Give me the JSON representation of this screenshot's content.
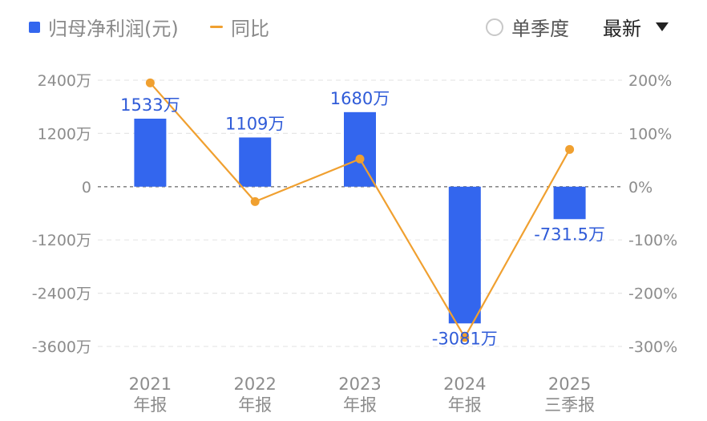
{
  "legend": {
    "bar_series_label": "归母净利润(元)",
    "line_series_label": "同比"
  },
  "controls": {
    "single_quarter_label": "单季度",
    "sort_label": "最新"
  },
  "colors": {
    "bar": "#3366ee",
    "line": "#f0a030",
    "label": "#2f5bd8"
  },
  "chart_data": {
    "type": "bar",
    "categories": [
      [
        "2021",
        "年报"
      ],
      [
        "2022",
        "年报"
      ],
      [
        "2023",
        "年报"
      ],
      [
        "2024",
        "年报"
      ],
      [
        "2025",
        "三季报"
      ]
    ],
    "series": [
      {
        "name": "归母净利润(元)",
        "type": "bar",
        "axis": "left",
        "values": [
          1533,
          1109,
          1680,
          -3081,
          -731.5
        ],
        "value_labels": [
          "1533万",
          "1109万",
          "1680万",
          "-3081万",
          "-731.5万"
        ]
      },
      {
        "name": "同比",
        "type": "line",
        "axis": "right",
        "values": [
          195,
          -28,
          52,
          -283,
          70
        ]
      }
    ],
    "y_left": {
      "ticks": [
        2400,
        1200,
        0,
        -1200,
        -2400,
        -3600
      ],
      "tick_labels": [
        "2400万",
        "1200万",
        "0",
        "-1200万",
        "-2400万",
        "-3600万"
      ],
      "lim": [
        -3600,
        2400
      ]
    },
    "y_right": {
      "ticks": [
        200,
        100,
        0,
        -100,
        -200,
        -300
      ],
      "tick_labels": [
        "200%",
        "100%",
        "0%",
        "-100%",
        "-200%",
        "-300%"
      ],
      "lim": [
        -300,
        200
      ]
    },
    "grid": true,
    "legend_position": "top-left"
  }
}
